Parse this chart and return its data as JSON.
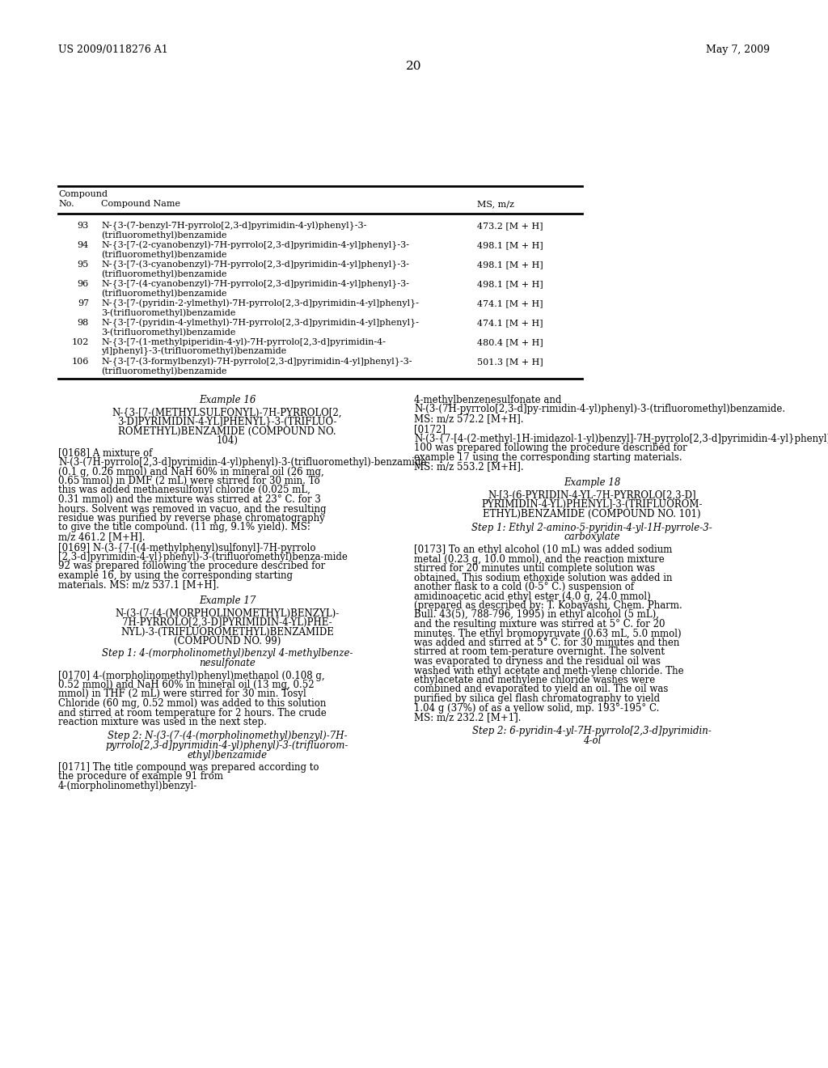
{
  "header_left": "US 2009/0118276 A1",
  "header_right": "May 7, 2009",
  "page_number": "20",
  "bg_color": "#ffffff"
}
